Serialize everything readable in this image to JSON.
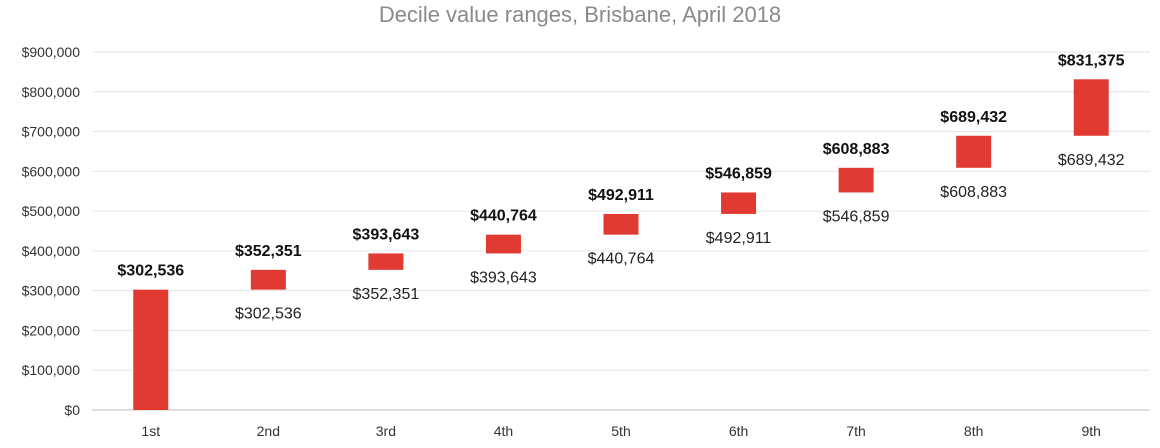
{
  "chart_data": {
    "type": "bar",
    "title": "Decile value ranges, Brisbane, April 2018",
    "xlabel": "",
    "ylabel": "",
    "ylim": [
      0,
      900000
    ],
    "y_tick_values": [
      0,
      100000,
      200000,
      300000,
      400000,
      500000,
      600000,
      700000,
      800000,
      900000
    ],
    "y_tick_labels": [
      "$0",
      "$100,000",
      "$200,000",
      "$300,000",
      "$400,000",
      "$500,000",
      "$600,000",
      "$700,000",
      "$800,000",
      "$900,000"
    ],
    "categories": [
      "1st",
      "2nd",
      "3rd",
      "4th",
      "5th",
      "6th",
      "7th",
      "8th",
      "9th"
    ],
    "ranges": [
      {
        "low": 0,
        "high": 302536
      },
      {
        "low": 302536,
        "high": 352351
      },
      {
        "low": 352351,
        "high": 393643
      },
      {
        "low": 393643,
        "high": 440764
      },
      {
        "low": 440764,
        "high": 492911
      },
      {
        "low": 492911,
        "high": 546859
      },
      {
        "low": 546859,
        "high": 608883
      },
      {
        "low": 608883,
        "high": 689432
      },
      {
        "low": 689432,
        "high": 831375
      }
    ],
    "high_labels": [
      "$302,536",
      "$352,351",
      "$393,643",
      "$440,764",
      "$492,911",
      "$546,859",
      "$608,883",
      "$689,432",
      "$831,375"
    ],
    "low_labels": [
      "",
      "$302,536",
      "$352,351",
      "$393,643",
      "$440,764",
      "$492,911",
      "$546,859",
      "$608,883",
      "$689,432"
    ],
    "bar_color": "#e03a32",
    "grid": true
  }
}
